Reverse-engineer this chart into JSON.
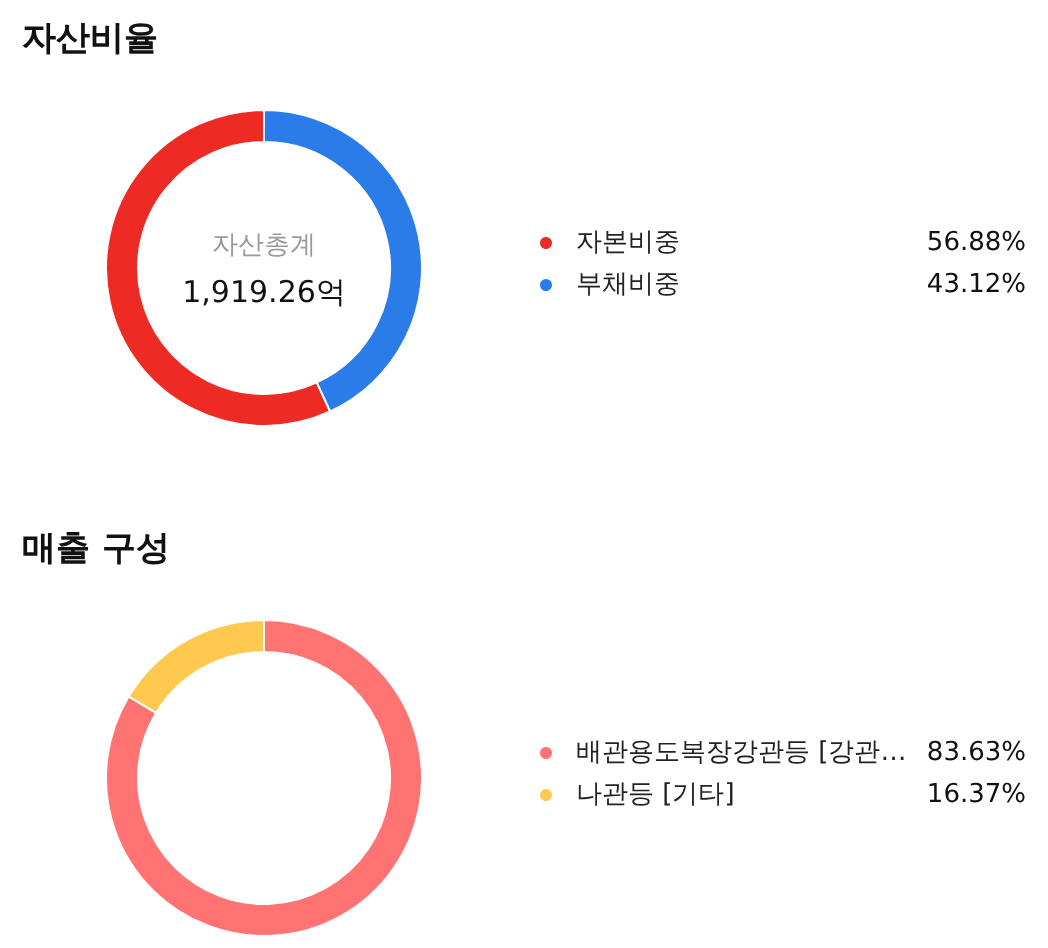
{
  "chart_data": [
    {
      "type": "donut",
      "title": "자산비율",
      "categories": [
        "자본비중",
        "부채비중"
      ],
      "values": [
        56.88,
        43.12
      ],
      "value_labels": [
        "56.88%",
        "43.12%"
      ],
      "colors": [
        "#ee2a24",
        "#2a7de8"
      ],
      "annotations": [
        "자산총계",
        "1,919.26억"
      ],
      "legend": "right"
    },
    {
      "type": "donut",
      "title": "매출 구성",
      "categories": [
        "배관용도복장강관등 [강관…",
        "나관등 [기타]"
      ],
      "values": [
        83.63,
        16.37
      ],
      "value_labels": [
        "83.63%",
        "16.37%"
      ],
      "colors": [
        "#ff7373",
        "#ffc84f"
      ],
      "legend": "right"
    }
  ]
}
